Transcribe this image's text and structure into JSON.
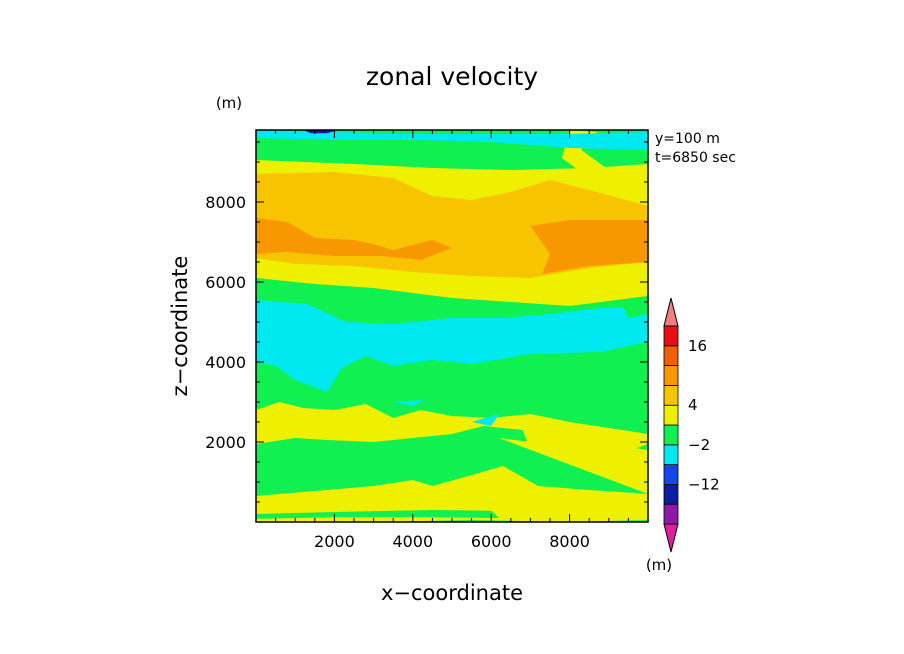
{
  "chart_data": {
    "type": "heatmap",
    "title": "zonal velocity",
    "xlabel": "x−coordinate",
    "ylabel": "z−coordinate",
    "x_unit": "(m)",
    "y_unit": "(m)",
    "info_lines": [
      "y=100  m",
      "t=6850  sec"
    ],
    "xlim": [
      0,
      10000
    ],
    "ylim": [
      0,
      9800
    ],
    "x_ticks": [
      2000,
      4000,
      6000,
      8000
    ],
    "x_tick_labels": [
      "2000",
      "4000",
      "6000",
      "8000"
    ],
    "y_ticks": [
      2000,
      4000,
      6000,
      8000
    ],
    "y_tick_labels": [
      "2000",
      "4000",
      "6000",
      "8000"
    ],
    "colorbar": {
      "colors": [
        "#e0209a",
        "#8c1aa6",
        "#0a1ca0",
        "#1446e8",
        "#00e8f0",
        "#10f050",
        "#eef000",
        "#f8c400",
        "#f89800",
        "#f06000",
        "#e81010",
        "#f08080"
      ],
      "labels": [
        "16",
        "4",
        "−2",
        "−12"
      ],
      "label_values": [
        16,
        4,
        -2,
        -12
      ],
      "unit": "(m)"
    },
    "band_colors": {
      "orange": "#f89800",
      "gold": "#f8c400",
      "yellow": "#eef000",
      "green": "#10f050",
      "cyan": "#00e8f0",
      "navy": "#0a1ca0"
    },
    "regions": [
      {
        "color": "green",
        "points": [
          [
            0,
            0
          ],
          [
            10000,
            0
          ],
          [
            10000,
            9800
          ],
          [
            0,
            9800
          ]
        ]
      },
      {
        "color": "yellow",
        "points": [
          [
            0,
            9050
          ],
          [
            2500,
            8950
          ],
          [
            4500,
            8850
          ],
          [
            6500,
            8800
          ],
          [
            8500,
            8850
          ],
          [
            10000,
            8950
          ],
          [
            10000,
            5650
          ],
          [
            8000,
            5400
          ],
          [
            6500,
            5500
          ],
          [
            5000,
            5600
          ],
          [
            3000,
            5850
          ],
          [
            1500,
            5950
          ],
          [
            0,
            6100
          ]
        ]
      },
      {
        "color": "gold",
        "points": [
          [
            0,
            8700
          ],
          [
            2000,
            8750
          ],
          [
            3500,
            8600
          ],
          [
            4500,
            8150
          ],
          [
            5500,
            8050
          ],
          [
            6500,
            8250
          ],
          [
            7500,
            8550
          ],
          [
            8500,
            8300
          ],
          [
            10000,
            7900
          ],
          [
            10000,
            6500
          ],
          [
            8500,
            6350
          ],
          [
            7000,
            6100
          ],
          [
            5500,
            6150
          ],
          [
            4000,
            6250
          ],
          [
            2500,
            6400
          ],
          [
            1000,
            6450
          ],
          [
            0,
            6600
          ]
        ]
      },
      {
        "color": "orange",
        "points": [
          [
            0,
            7600
          ],
          [
            800,
            7500
          ],
          [
            1500,
            7100
          ],
          [
            2500,
            7050
          ],
          [
            3000,
            6950
          ],
          [
            3500,
            6800
          ],
          [
            4500,
            7050
          ],
          [
            5000,
            6850
          ],
          [
            4200,
            6550
          ],
          [
            3200,
            6650
          ],
          [
            2000,
            6650
          ],
          [
            800,
            6750
          ],
          [
            0,
            6700
          ]
        ]
      },
      {
        "color": "orange",
        "points": [
          [
            7000,
            7400
          ],
          [
            8000,
            7550
          ],
          [
            10000,
            7550
          ],
          [
            10000,
            6500
          ],
          [
            8500,
            6400
          ],
          [
            7300,
            6200
          ],
          [
            7500,
            6700
          ]
        ]
      },
      {
        "color": "yellow",
        "points": [
          [
            8000,
            9800
          ],
          [
            8700,
            9750
          ],
          [
            8300,
            9300
          ],
          [
            9000,
            8800
          ],
          [
            8500,
            8600
          ],
          [
            7800,
            9100
          ]
        ]
      },
      {
        "color": "cyan",
        "points": [
          [
            0,
            5550
          ],
          [
            1300,
            5450
          ],
          [
            2300,
            5000
          ],
          [
            3500,
            4950
          ],
          [
            5000,
            5100
          ],
          [
            6300,
            5100
          ],
          [
            7500,
            5200
          ],
          [
            8800,
            5350
          ],
          [
            10000,
            5400
          ],
          [
            10000,
            4500
          ],
          [
            8800,
            4250
          ],
          [
            7000,
            4200
          ],
          [
            5500,
            3950
          ],
          [
            4500,
            4050
          ],
          [
            3500,
            3900
          ],
          [
            2800,
            4150
          ],
          [
            2200,
            3850
          ],
          [
            1800,
            3250
          ],
          [
            1000,
            3550
          ],
          [
            500,
            3900
          ],
          [
            0,
            4000
          ]
        ]
      },
      {
        "color": "cyan",
        "points": [
          [
            0,
            9800
          ],
          [
            2000,
            9750
          ],
          [
            4000,
            9700
          ],
          [
            6000,
            9700
          ],
          [
            8000,
            9700
          ],
          [
            10000,
            9750
          ],
          [
            10000,
            9300
          ],
          [
            8000,
            9350
          ],
          [
            6000,
            9500
          ],
          [
            4000,
            9550
          ],
          [
            2000,
            9550
          ],
          [
            0,
            9600
          ]
        ]
      },
      {
        "color": "green",
        "points": [
          [
            9300,
            5500
          ],
          [
            10000,
            5600
          ],
          [
            10000,
            5200
          ],
          [
            9500,
            5100
          ]
        ]
      },
      {
        "color": "yellow",
        "points": [
          [
            0,
            2800
          ],
          [
            600,
            3000
          ],
          [
            1200,
            2850
          ],
          [
            2000,
            2800
          ],
          [
            2800,
            2950
          ],
          [
            3500,
            2600
          ],
          [
            4200,
            2800
          ],
          [
            5000,
            2650
          ],
          [
            6000,
            2600
          ],
          [
            7000,
            2700
          ],
          [
            8000,
            2500
          ],
          [
            9000,
            2350
          ],
          [
            10000,
            2200
          ],
          [
            10000,
            1950
          ],
          [
            9000,
            1600
          ],
          [
            7800,
            1600
          ],
          [
            7000,
            1800
          ],
          [
            6800,
            2300
          ],
          [
            5800,
            2400
          ],
          [
            5000,
            2200
          ],
          [
            4000,
            2100
          ],
          [
            3000,
            2000
          ],
          [
            1800,
            2050
          ],
          [
            1000,
            2100
          ],
          [
            0,
            1950
          ]
        ]
      },
      {
        "color": "yellow",
        "points": [
          [
            6200,
            2100
          ],
          [
            7000,
            2000
          ],
          [
            8000,
            1800
          ],
          [
            9000,
            1950
          ],
          [
            10000,
            1800
          ],
          [
            10000,
            700
          ],
          [
            8500,
            800
          ],
          [
            7200,
            900
          ],
          [
            6300,
            1400
          ],
          [
            5600,
            1200
          ],
          [
            4500,
            900
          ],
          [
            4000,
            1050
          ],
          [
            3000,
            900
          ],
          [
            1800,
            800
          ],
          [
            0,
            650
          ],
          [
            0,
            0
          ],
          [
            10000,
            0
          ],
          [
            10000,
            700
          ]
        ]
      },
      {
        "color": "green",
        "points": [
          [
            0,
            0
          ],
          [
            3000,
            0
          ],
          [
            5500,
            50
          ],
          [
            8000,
            0
          ],
          [
            10000,
            50
          ],
          [
            10000,
            0
          ]
        ]
      },
      {
        "color": "green",
        "points": [
          [
            0,
            200
          ],
          [
            2000,
            250
          ],
          [
            4500,
            300
          ],
          [
            6000,
            280
          ],
          [
            6200,
            100
          ],
          [
            4500,
            120
          ],
          [
            2000,
            120
          ],
          [
            0,
            80
          ]
        ]
      },
      {
        "color": "cyan",
        "points": [
          [
            3500,
            3000
          ],
          [
            4300,
            3050
          ],
          [
            4000,
            2900
          ]
        ]
      },
      {
        "color": "cyan",
        "points": [
          [
            5500,
            2500
          ],
          [
            6200,
            2700
          ],
          [
            6000,
            2400
          ]
        ]
      },
      {
        "color": "navy",
        "points": [
          [
            1200,
            9800
          ],
          [
            2100,
            9800
          ],
          [
            1800,
            9720
          ],
          [
            1400,
            9720
          ]
        ]
      }
    ]
  }
}
